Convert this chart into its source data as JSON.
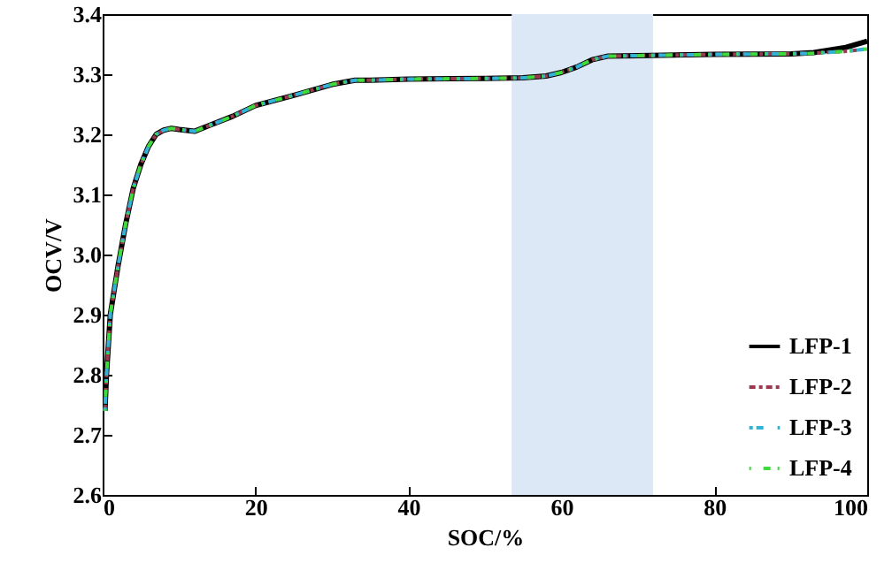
{
  "chart_data": {
    "type": "line",
    "xlabel": "SOC/%",
    "ylabel": "OCV/V",
    "x": [
      0.3,
      0.5,
      1,
      2,
      3,
      4,
      5,
      6,
      7,
      8,
      9,
      10,
      12,
      14,
      17,
      20,
      25,
      30,
      33,
      35,
      40,
      50,
      55,
      58,
      60,
      62,
      64,
      66,
      70,
      80,
      90,
      93,
      97,
      100
    ],
    "series": [
      {
        "name": "LFP-1",
        "color": "#000000",
        "line_style": "solid",
        "values": [
          2.74,
          2.8,
          2.9,
          2.98,
          3.05,
          3.11,
          3.15,
          3.18,
          3.2,
          3.207,
          3.21,
          3.208,
          3.205,
          3.215,
          3.23,
          3.248,
          3.265,
          3.283,
          3.29,
          3.29,
          3.292,
          3.293,
          3.294,
          3.297,
          3.303,
          3.312,
          3.324,
          3.33,
          3.331,
          3.333,
          3.334,
          3.336,
          3.344,
          3.355
        ]
      },
      {
        "name": "LFP-2",
        "color": "#9b3a4f",
        "line_style": "dotted",
        "values": [
          2.74,
          2.8,
          2.9,
          2.98,
          3.05,
          3.11,
          3.15,
          3.18,
          3.2,
          3.207,
          3.21,
          3.208,
          3.205,
          3.215,
          3.23,
          3.248,
          3.265,
          3.283,
          3.29,
          3.29,
          3.292,
          3.293,
          3.294,
          3.297,
          3.303,
          3.312,
          3.324,
          3.33,
          3.331,
          3.333,
          3.334,
          3.335,
          3.338,
          3.342
        ]
      },
      {
        "name": "LFP-3",
        "color": "#2fb3d6",
        "line_style": "dashed",
        "values": [
          2.74,
          2.8,
          2.9,
          2.98,
          3.05,
          3.11,
          3.15,
          3.18,
          3.2,
          3.207,
          3.21,
          3.208,
          3.205,
          3.215,
          3.23,
          3.248,
          3.265,
          3.283,
          3.29,
          3.29,
          3.292,
          3.293,
          3.294,
          3.297,
          3.303,
          3.312,
          3.324,
          3.33,
          3.331,
          3.333,
          3.334,
          3.335,
          3.338,
          3.342
        ]
      },
      {
        "name": "LFP-4",
        "color": "#3ddc3d",
        "line_style": "dashed",
        "values": [
          2.74,
          2.8,
          2.9,
          2.98,
          3.05,
          3.11,
          3.15,
          3.18,
          3.2,
          3.207,
          3.21,
          3.208,
          3.205,
          3.215,
          3.23,
          3.248,
          3.265,
          3.283,
          3.29,
          3.29,
          3.292,
          3.293,
          3.294,
          3.297,
          3.303,
          3.312,
          3.324,
          3.33,
          3.331,
          3.333,
          3.334,
          3.335,
          3.338,
          3.342
        ]
      }
    ],
    "xlim": [
      0,
      100
    ],
    "xticks": [
      0,
      20,
      40,
      60,
      80,
      100
    ],
    "ylim": [
      2.6,
      3.4
    ],
    "yticks": [
      2.6,
      2.7,
      2.8,
      2.9,
      {
        "value": 3,
        "label": "3.0"
      },
      3.1,
      3.2,
      3.3,
      3.4
    ],
    "bands": [
      {
        "axis": "x",
        "from": 53.5,
        "to": 72,
        "color": "#dce8f5"
      }
    ],
    "legend": "bottom right",
    "grid": false,
    "marker": "none"
  }
}
